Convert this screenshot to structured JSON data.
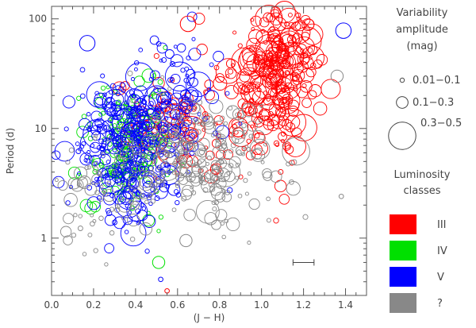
{
  "chart_data": {
    "type": "scatter",
    "title": "",
    "xlabel": "(J − H)",
    "ylabel": "Period (d)",
    "xlim": [
      0.0,
      1.5
    ],
    "ylim": [
      0.3,
      130
    ],
    "yscale": "log",
    "x_ticks": [
      "0.0",
      "0.2",
      "0.4",
      "0.6",
      "0.8",
      "1.0",
      "1.2",
      "1.4"
    ],
    "y_ticks": [
      "1",
      "10",
      "100"
    ],
    "grid": false,
    "legend_position": "right",
    "size_legend": {
      "title_lines": [
        "Variability",
        "amplitude",
        "(mag)"
      ],
      "entries": [
        "0.01−0.1",
        "0.1−0.3",
        "0.3−0.5"
      ]
    },
    "color_legend": {
      "title_lines": [
        "Luminosity",
        "classes"
      ],
      "entries": [
        "III",
        "IV",
        "V",
        "?"
      ]
    },
    "series": [
      {
        "name": "III",
        "color": "#ff0000",
        "clusters": [
          {
            "center": [
              1.08,
              38
            ],
            "spread": [
              0.09,
              0.3
            ],
            "count": 230,
            "amplitude_mix": [
              0.35,
              0.45,
              0.2
            ]
          },
          {
            "center": [
              0.95,
              12
            ],
            "spread": [
              0.13,
              0.32
            ],
            "count": 80,
            "amplitude_mix": [
              0.5,
              0.4,
              0.1
            ]
          },
          {
            "center": [
              0.55,
              10
            ],
            "spread": [
              0.12,
              0.22
            ],
            "count": 90,
            "amplitude_mix": [
              0.5,
              0.4,
              0.1
            ]
          }
        ]
      },
      {
        "name": "IV",
        "color": "#00e000",
        "clusters": [
          {
            "center": [
              0.36,
              7
            ],
            "spread": [
              0.11,
              0.26
            ],
            "count": 200,
            "amplitude_mix": [
              0.7,
              0.27,
              0.03
            ]
          }
        ]
      },
      {
        "name": "V",
        "color": "#0000ff",
        "clusters": [
          {
            "center": [
              0.38,
              7
            ],
            "spread": [
              0.13,
              0.3
            ],
            "count": 380,
            "amplitude_mix": [
              0.7,
              0.26,
              0.04
            ]
          },
          {
            "center": [
              0.6,
              20
            ],
            "spread": [
              0.12,
              0.3
            ],
            "count": 90,
            "amplitude_mix": [
              0.45,
              0.4,
              0.15
            ]
          }
        ]
      },
      {
        "name": "?",
        "color": "#888888",
        "clusters": [
          {
            "center": [
              0.72,
              5
            ],
            "spread": [
              0.17,
              0.28
            ],
            "count": 240,
            "amplitude_mix": [
              0.6,
              0.35,
              0.05
            ]
          },
          {
            "center": [
              0.25,
              2.5
            ],
            "spread": [
              0.12,
              0.22
            ],
            "count": 60,
            "amplitude_mix": [
              0.8,
              0.2,
              0.0
            ]
          }
        ]
      }
    ],
    "highlighted_points": [
      {
        "class": "V",
        "x": 0.17,
        "y": 60,
        "amplitude": "0.3−0.5"
      },
      {
        "class": "V",
        "x": 1.39,
        "y": 78,
        "amplitude": "0.3−0.5"
      },
      {
        "class": "V",
        "x": 0.52,
        "y": 0.42,
        "amplitude": "0.01−0.1"
      },
      {
        "class": "IV",
        "x": 0.51,
        "y": 0.6,
        "amplitude": "0.1−0.3"
      },
      {
        "class": "III",
        "x": 0.65,
        "y": 90,
        "amplitude": "0.3−0.5"
      },
      {
        "class": "III",
        "x": 0.55,
        "y": 0.33,
        "amplitude": "0.01−0.1"
      },
      {
        "class": "?",
        "x": 1.38,
        "y": 2.4,
        "amplitude": "0.01−0.1"
      },
      {
        "class": "?",
        "x": 1.36,
        "y": 30,
        "amplitude": "0.1−0.3"
      },
      {
        "class": "?",
        "x": 0.64,
        "y": 0.95,
        "amplitude": "0.1−0.3"
      }
    ],
    "error_bar": {
      "x": 1.2,
      "y": 0.6,
      "half_width": 0.05
    }
  }
}
